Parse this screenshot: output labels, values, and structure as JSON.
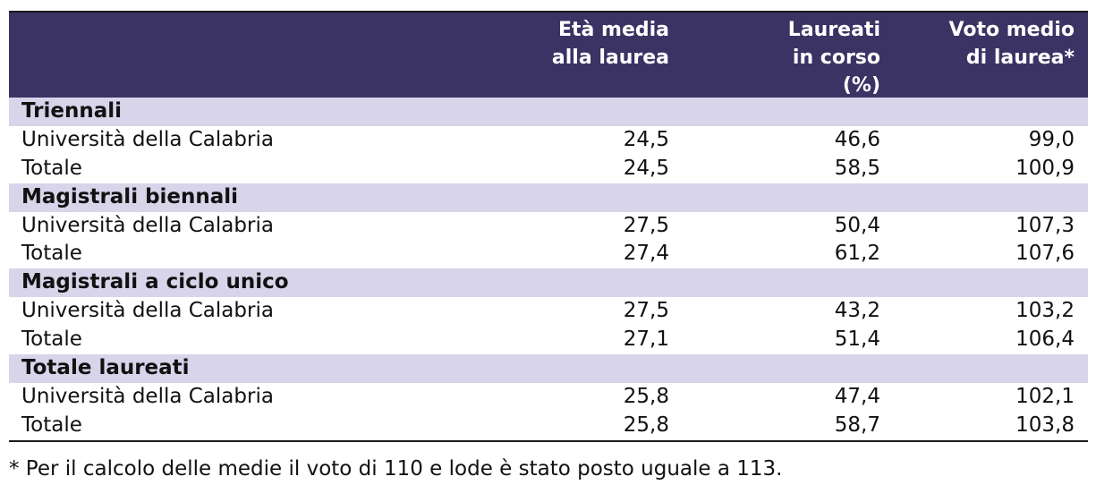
{
  "header": {
    "col1": [
      "Età media",
      "alla laurea"
    ],
    "col2": [
      "Laureati",
      "in corso",
      "(%)"
    ],
    "col3": [
      "Voto medio",
      "di laurea*"
    ]
  },
  "sections": [
    {
      "title": "Triennali",
      "rows": [
        {
          "label": "Università della Calabria",
          "eta": "24,5",
          "incorso": "46,6",
          "voto": "99,0"
        },
        {
          "label": "Totale",
          "eta": "24,5",
          "incorso": "58,5",
          "voto": "100,9"
        }
      ]
    },
    {
      "title": "Magistrali biennali",
      "rows": [
        {
          "label": "Università della Calabria",
          "eta": "27,5",
          "incorso": "50,4",
          "voto": "107,3"
        },
        {
          "label": "Totale",
          "eta": "27,4",
          "incorso": "61,2",
          "voto": "107,6"
        }
      ]
    },
    {
      "title": "Magistrali a ciclo unico",
      "rows": [
        {
          "label": "Università della Calabria",
          "eta": "27,5",
          "incorso": "43,2",
          "voto": "103,2"
        },
        {
          "label": "Totale",
          "eta": "27,1",
          "incorso": "51,4",
          "voto": "106,4"
        }
      ]
    },
    {
      "title": "Totale laureati",
      "rows": [
        {
          "label": "Università della Calabria",
          "eta": "25,8",
          "incorso": "47,4",
          "voto": "102,1"
        },
        {
          "label": "Totale",
          "eta": "25,8",
          "incorso": "58,7",
          "voto": "103,8"
        }
      ]
    }
  ],
  "footnote": "* Per il calcolo delle medie il voto di 110 e lode è stato posto uguale a 113.",
  "colors": {
    "header_bg": "#3a3364",
    "section_bg": "#d8d4ea"
  }
}
